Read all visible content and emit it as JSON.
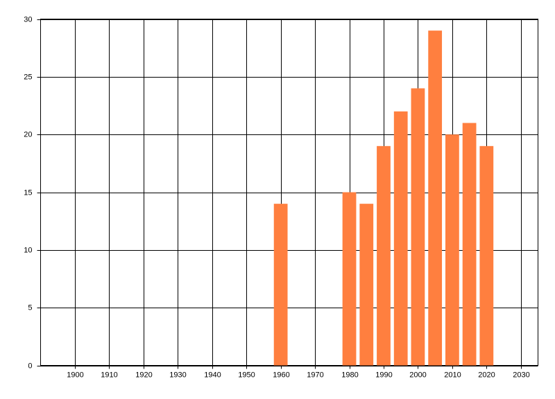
{
  "chart_data": {
    "type": "bar",
    "x": [
      1960,
      1980,
      1985,
      1990,
      1995,
      2000,
      2005,
      2010,
      2015,
      2020
    ],
    "values": [
      14,
      15,
      14,
      19,
      22,
      24,
      29,
      20,
      21,
      19
    ],
    "color": "#ff7f3f",
    "xlim": [
      1890,
      2035
    ],
    "xticks": [
      1900,
      1910,
      1920,
      1930,
      1940,
      1950,
      1960,
      1970,
      1980,
      1990,
      2000,
      2010,
      2020,
      2030
    ],
    "ylim": [
      0,
      30
    ],
    "yticks": [
      0,
      5,
      10,
      15,
      20,
      25,
      30
    ],
    "grid": true
  }
}
